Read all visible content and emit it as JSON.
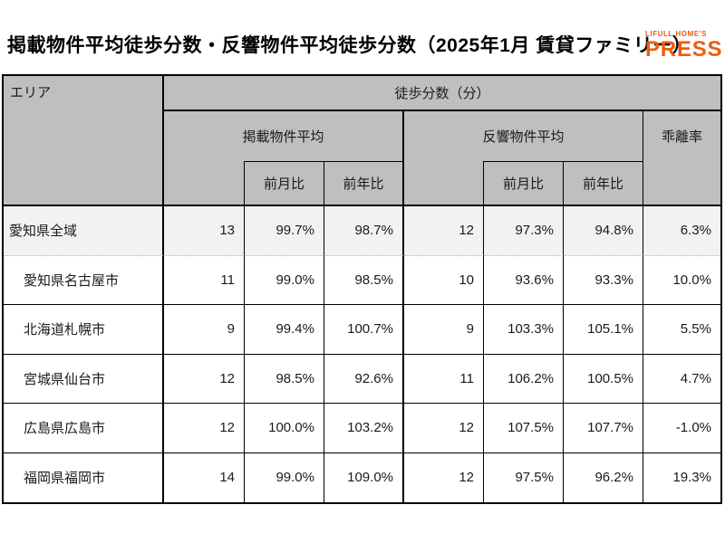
{
  "title": "掲載物件平均徒歩分数・反響物件平均徒歩分数（2025年1月 賃貸ファミリー）",
  "logo": {
    "brand": "LIFULL HOME'S",
    "product": "PRESS",
    "color": "#EA5E13"
  },
  "colors": {
    "header_bg": "#BFBFBF",
    "highlight_row_bg": "#F2F2F2",
    "border": "#000000"
  },
  "table": {
    "headers": {
      "area": "エリア",
      "walk_minutes": "徒歩分数（分）",
      "listed_avg": "掲載物件平均",
      "response_avg": "反響物件平均",
      "divergence": "乖離率",
      "mom": "前月比",
      "yoy": "前年比"
    },
    "rows": [
      {
        "area": "愛知県全域",
        "listed": "13",
        "listed_mom": "99.7%",
        "listed_yoy": "98.7%",
        "response": "12",
        "response_mom": "97.3%",
        "response_yoy": "94.8%",
        "divergence": "6.3%"
      },
      {
        "area": "愛知県名古屋市",
        "listed": "11",
        "listed_mom": "99.0%",
        "listed_yoy": "98.5%",
        "response": "10",
        "response_mom": "93.6%",
        "response_yoy": "93.3%",
        "divergence": "10.0%"
      },
      {
        "area": "北海道札幌市",
        "listed": "9",
        "listed_mom": "99.4%",
        "listed_yoy": "100.7%",
        "response": "9",
        "response_mom": "103.3%",
        "response_yoy": "105.1%",
        "divergence": "5.5%"
      },
      {
        "area": "宮城県仙台市",
        "listed": "12",
        "listed_mom": "98.5%",
        "listed_yoy": "92.6%",
        "response": "11",
        "response_mom": "106.2%",
        "response_yoy": "100.5%",
        "divergence": "4.7%"
      },
      {
        "area": "広島県広島市",
        "listed": "12",
        "listed_mom": "100.0%",
        "listed_yoy": "103.2%",
        "response": "12",
        "response_mom": "107.5%",
        "response_yoy": "107.7%",
        "divergence": "-1.0%"
      },
      {
        "area": "福岡県福岡市",
        "listed": "14",
        "listed_mom": "99.0%",
        "listed_yoy": "109.0%",
        "response": "12",
        "response_mom": "97.5%",
        "response_yoy": "96.2%",
        "divergence": "19.3%"
      }
    ]
  },
  "chart_data": {
    "type": "table",
    "title": "掲載物件平均徒歩分数・反響物件平均徒歩分数（2025年1月 賃貸ファミリー）",
    "columns": [
      "エリア",
      "掲載物件平均",
      "掲載 前月比",
      "掲載 前年比",
      "反響物件平均",
      "反響 前月比",
      "反響 前年比",
      "乖離率"
    ],
    "rows": [
      [
        "愛知県全域",
        13,
        "99.7%",
        "98.7%",
        12,
        "97.3%",
        "94.8%",
        "6.3%"
      ],
      [
        "愛知県名古屋市",
        11,
        "99.0%",
        "98.5%",
        10,
        "93.6%",
        "93.3%",
        "10.0%"
      ],
      [
        "北海道札幌市",
        9,
        "99.4%",
        "100.7%",
        9,
        "103.3%",
        "105.1%",
        "5.5%"
      ],
      [
        "宮城県仙台市",
        12,
        "98.5%",
        "92.6%",
        11,
        "106.2%",
        "100.5%",
        "4.7%"
      ],
      [
        "広島県広島市",
        12,
        "100.0%",
        "103.2%",
        12,
        "107.5%",
        "107.7%",
        "-1.0%"
      ],
      [
        "福岡県福岡市",
        14,
        "99.0%",
        "109.0%",
        12,
        "97.5%",
        "96.2%",
        "19.3%"
      ]
    ]
  }
}
